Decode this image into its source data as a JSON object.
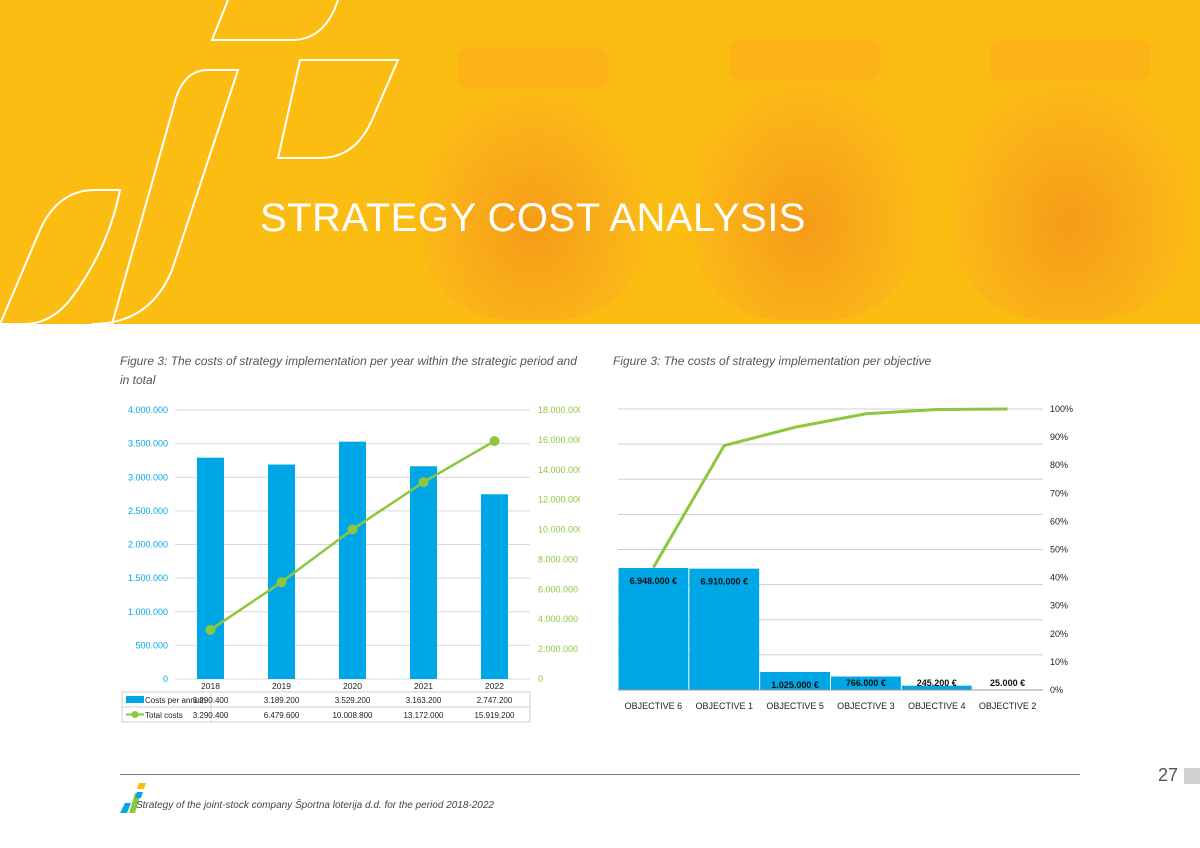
{
  "page": {
    "title": "STRATEGY COST ANALYSIS",
    "page_number": "27",
    "footer": "Strategy of the joint-stock company Športna loterija d.d. for the period 2018-2022"
  },
  "colors": {
    "banner": "#fcbd12",
    "bar": "#00a7e7",
    "line": "#8dc63f",
    "left_axis_text": "#00a7e7",
    "right_axis_text": "#8dc63f"
  },
  "chart_data": [
    {
      "type": "bar",
      "title": "Figure 3: The costs of strategy implementation per year within the strategic period and in total",
      "categories": [
        "2018",
        "2019",
        "2020",
        "2021",
        "2022"
      ],
      "series": [
        {
          "name": "Costs per annum",
          "type": "bar",
          "axis": "left",
          "values": [
            3290400,
            3189200,
            3529200,
            3163200,
            2747200
          ],
          "labels": [
            "3.290.400",
            "3.189.200",
            "3.529.200",
            "3.163.200",
            "2.747.200"
          ]
        },
        {
          "name": "Total costs",
          "type": "line",
          "axis": "right",
          "values": [
            3290400,
            6479600,
            10008800,
            13172000,
            15919200
          ],
          "labels": [
            "3.290.400",
            "6.479.600",
            "10.008.800",
            "13.172.000",
            "15.919.200"
          ]
        }
      ],
      "left_axis": {
        "ylim": [
          0,
          4000000
        ],
        "ticks": [
          0,
          500000,
          1000000,
          1500000,
          2000000,
          2500000,
          3000000,
          3500000,
          4000000
        ],
        "tick_labels": [
          "0",
          "500.000",
          "1.000.000",
          "1.500.000",
          "2.000.000",
          "2.500.000",
          "3.000.000",
          "3.500.000",
          "4.000.000"
        ]
      },
      "right_axis": {
        "ylim": [
          0,
          18000000
        ],
        "ticks": [
          0,
          2000000,
          4000000,
          6000000,
          8000000,
          10000000,
          12000000,
          14000000,
          16000000,
          18000000
        ],
        "tick_labels": [
          "0",
          "2.000.000",
          "4.000.000",
          "6.000.000",
          "8.000.000",
          "10.000.000",
          "12.000.000",
          "14.000.000",
          "16.000.000",
          "18.000.000"
        ]
      },
      "grid": true,
      "legend": "data-table-below"
    },
    {
      "type": "bar",
      "title": "Figure 3: The costs of strategy implementation per objective",
      "categories": [
        "OBJECTIVE 6",
        "OBJECTIVE 1",
        "OBJECTIVE 5",
        "OBJECTIVE 3",
        "OBJECTIVE 4",
        "OBJECTIVE 2"
      ],
      "values": [
        6948000,
        6910000,
        1025000,
        766000,
        245200,
        25000
      ],
      "value_labels": [
        "6.948.000 €",
        "6.910.000 €",
        "1.025.000 €",
        "766.000 €",
        "245.200 €",
        "25.000 €"
      ],
      "cumulative_percent": [
        43.6,
        87.0,
        93.5,
        98.3,
        99.8,
        100.0
      ],
      "left_axis": {
        "ylim": [
          0,
          16000000
        ],
        "ticks": [
          0,
          2000000,
          4000000,
          6000000,
          8000000,
          10000000,
          12000000,
          14000000,
          16000000
        ]
      },
      "right_axis": {
        "ylim": [
          0,
          100
        ],
        "ticks": [
          0,
          10,
          20,
          30,
          40,
          50,
          60,
          70,
          80,
          90,
          100
        ],
        "tick_labels": [
          "0%",
          "10%",
          "20%",
          "30%",
          "40%",
          "50%",
          "60%",
          "70%",
          "80%",
          "90%",
          "100%"
        ]
      },
      "grid": true,
      "legend": "none"
    }
  ]
}
